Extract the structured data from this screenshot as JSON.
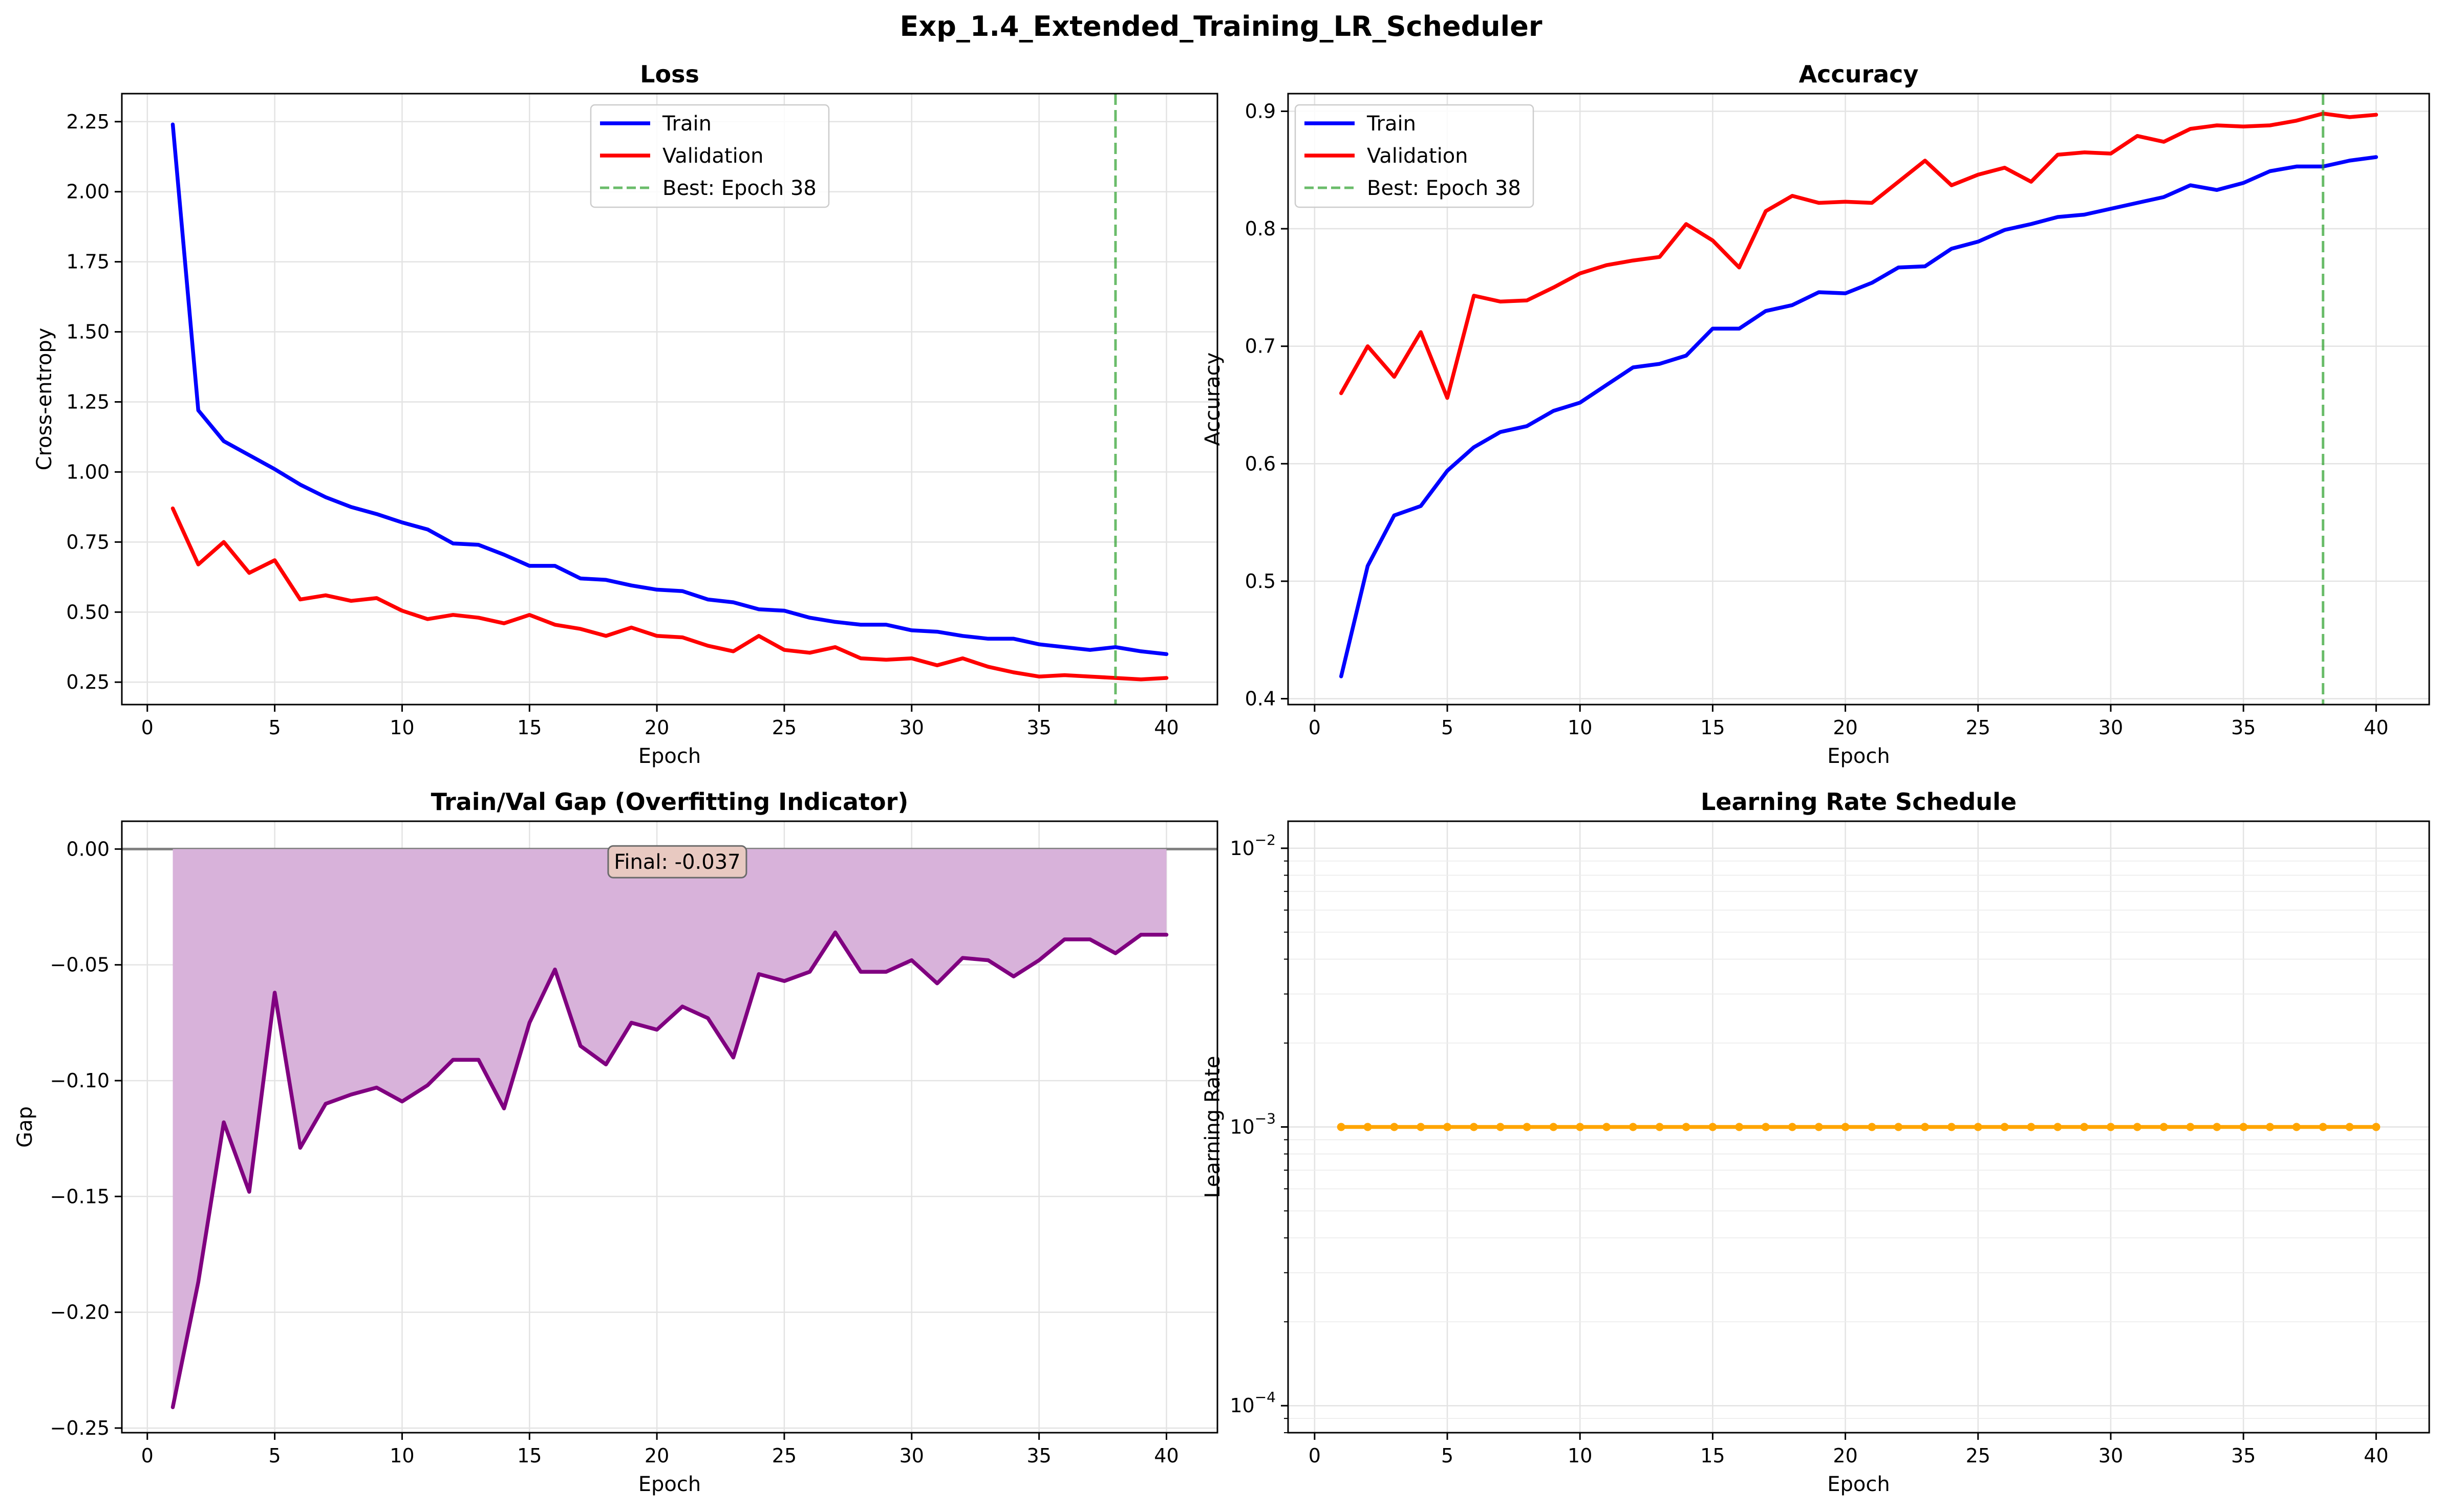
{
  "figure": {
    "title": "Exp_1.4_Extended_Training_LR_Scheduler"
  },
  "chart_data": [
    {
      "type": "line",
      "title": "Loss",
      "xlabel": "Epoch",
      "ylabel": "Cross-entropy",
      "xlim": [
        -1,
        42
      ],
      "ylim": [
        0.17,
        2.35
      ],
      "xticks": [
        0,
        5,
        10,
        15,
        20,
        25,
        30,
        35,
        40
      ],
      "yticks": [
        0.25,
        0.5,
        0.75,
        1.0,
        1.25,
        1.5,
        1.75,
        2.0,
        2.25
      ],
      "ytick_labels": [
        "0.25",
        "0.50",
        "0.75",
        "1.00",
        "1.25",
        "1.50",
        "1.75",
        "2.00",
        "2.25"
      ],
      "grid": true,
      "legend_position": "upper center",
      "x": [
        1,
        2,
        3,
        4,
        5,
        6,
        7,
        8,
        9,
        10,
        11,
        12,
        13,
        14,
        15,
        16,
        17,
        18,
        19,
        20,
        21,
        22,
        23,
        24,
        25,
        26,
        27,
        28,
        29,
        30,
        31,
        32,
        33,
        34,
        35,
        36,
        37,
        38,
        39,
        40
      ],
      "series": [
        {
          "name": "Train",
          "color": "#0000ff",
          "values": [
            2.24,
            1.22,
            1.11,
            1.06,
            1.01,
            0.955,
            0.91,
            0.875,
            0.85,
            0.82,
            0.795,
            0.745,
            0.74,
            0.705,
            0.665,
            0.665,
            0.62,
            0.615,
            0.595,
            0.58,
            0.575,
            0.545,
            0.535,
            0.51,
            0.505,
            0.48,
            0.465,
            0.455,
            0.455,
            0.435,
            0.43,
            0.415,
            0.405,
            0.405,
            0.385,
            0.375,
            0.365,
            0.375,
            0.36,
            0.35
          ]
        },
        {
          "name": "Validation",
          "color": "#ff0000",
          "values": [
            0.87,
            0.67,
            0.75,
            0.64,
            0.685,
            0.545,
            0.56,
            0.54,
            0.55,
            0.505,
            0.475,
            0.49,
            0.48,
            0.46,
            0.49,
            0.455,
            0.44,
            0.415,
            0.445,
            0.415,
            0.41,
            0.38,
            0.36,
            0.415,
            0.365,
            0.355,
            0.375,
            0.335,
            0.33,
            0.335,
            0.31,
            0.335,
            0.305,
            0.285,
            0.27,
            0.275,
            0.27,
            0.265,
            0.26,
            0.265
          ]
        }
      ],
      "vline": {
        "x": 38,
        "label": "Best: Epoch 38",
        "color": "#2ca02c"
      }
    },
    {
      "type": "line",
      "title": "Accuracy",
      "xlabel": "Epoch",
      "ylabel": "Accuracy",
      "xlim": [
        -1,
        42
      ],
      "ylim": [
        0.395,
        0.915
      ],
      "xticks": [
        0,
        5,
        10,
        15,
        20,
        25,
        30,
        35,
        40
      ],
      "yticks": [
        0.4,
        0.5,
        0.6,
        0.7,
        0.8,
        0.9
      ],
      "ytick_labels": [
        "0.4",
        "0.5",
        "0.6",
        "0.7",
        "0.8",
        "0.9"
      ],
      "grid": true,
      "legend_position": "upper left",
      "x": [
        1,
        2,
        3,
        4,
        5,
        6,
        7,
        8,
        9,
        10,
        11,
        12,
        13,
        14,
        15,
        16,
        17,
        18,
        19,
        20,
        21,
        22,
        23,
        24,
        25,
        26,
        27,
        28,
        29,
        30,
        31,
        32,
        33,
        34,
        35,
        36,
        37,
        38,
        39,
        40
      ],
      "series": [
        {
          "name": "Train",
          "color": "#0000ff",
          "values": [
            0.419,
            0.513,
            0.556,
            0.564,
            0.594,
            0.614,
            0.627,
            0.632,
            0.645,
            0.652,
            0.667,
            0.682,
            0.685,
            0.692,
            0.715,
            0.715,
            0.73,
            0.735,
            0.746,
            0.745,
            0.754,
            0.767,
            0.768,
            0.783,
            0.789,
            0.799,
            0.804,
            0.81,
            0.812,
            0.817,
            0.822,
            0.827,
            0.837,
            0.833,
            0.839,
            0.849,
            0.853,
            0.853,
            0.858,
            0.861
          ]
        },
        {
          "name": "Validation",
          "color": "#ff0000",
          "values": [
            0.66,
            0.7,
            0.674,
            0.712,
            0.656,
            0.743,
            0.738,
            0.739,
            0.75,
            0.762,
            0.769,
            0.773,
            0.776,
            0.804,
            0.79,
            0.767,
            0.815,
            0.828,
            0.822,
            0.823,
            0.822,
            0.84,
            0.858,
            0.837,
            0.846,
            0.852,
            0.84,
            0.863,
            0.865,
            0.864,
            0.879,
            0.874,
            0.885,
            0.888,
            0.887,
            0.888,
            0.892,
            0.898,
            0.895,
            0.897
          ]
        }
      ],
      "vline": {
        "x": 38,
        "label": "Best: Epoch 38",
        "color": "#2ca02c"
      }
    },
    {
      "type": "area",
      "title": "Train/Val Gap (Overfitting Indicator)",
      "xlabel": "Epoch",
      "ylabel": "Gap",
      "xlim": [
        -1,
        42
      ],
      "ylim": [
        -0.252,
        0.012
      ],
      "xticks": [
        0,
        5,
        10,
        15,
        20,
        25,
        30,
        35,
        40
      ],
      "yticks": [
        0.0,
        -0.05,
        -0.1,
        -0.15,
        -0.2,
        -0.25
      ],
      "ytick_labels": [
        "0.00",
        "−0.05",
        "−0.10",
        "−0.15",
        "−0.20",
        "−0.25"
      ],
      "grid": true,
      "x": [
        1,
        2,
        3,
        4,
        5,
        6,
        7,
        8,
        9,
        10,
        11,
        12,
        13,
        14,
        15,
        16,
        17,
        18,
        19,
        20,
        21,
        22,
        23,
        24,
        25,
        26,
        27,
        28,
        29,
        30,
        31,
        32,
        33,
        34,
        35,
        36,
        37,
        38,
        39,
        40
      ],
      "series": [
        {
          "name": "",
          "color": "#800080",
          "fill": "#d8b2da",
          "values": [
            -0.241,
            -0.187,
            -0.118,
            -0.148,
            -0.062,
            -0.129,
            -0.11,
            -0.106,
            -0.103,
            -0.109,
            -0.102,
            -0.091,
            -0.091,
            -0.112,
            -0.075,
            -0.052,
            -0.085,
            -0.093,
            -0.075,
            -0.078,
            -0.068,
            -0.073,
            -0.09,
            -0.054,
            -0.057,
            -0.053,
            -0.036,
            -0.053,
            -0.053,
            -0.048,
            -0.058,
            -0.047,
            -0.048,
            -0.055,
            -0.048,
            -0.039,
            -0.039,
            -0.045,
            -0.037,
            -0.037
          ]
        }
      ],
      "hline": {
        "y": 0,
        "color": "#808080"
      },
      "annotation": {
        "text": "Final: -0.037",
        "x": 20.8,
        "y": -0.0055,
        "box_color": "#e8c9c1"
      }
    },
    {
      "type": "line",
      "title": "Learning Rate Schedule",
      "xlabel": "Epoch",
      "ylabel": "Learning Rate",
      "yscale": "log",
      "xlim": [
        -1,
        42
      ],
      "ylim": [
        8e-05,
        0.0125
      ],
      "xticks": [
        0,
        5,
        10,
        15,
        20,
        25,
        30,
        35,
        40
      ],
      "yticks_major": [
        0.0001,
        0.001,
        0.01
      ],
      "ytick_labels": [
        [
          "10",
          "−4"
        ],
        [
          "10",
          "−3"
        ],
        [
          "10",
          "−2"
        ]
      ],
      "grid": true,
      "x": [
        1,
        2,
        3,
        4,
        5,
        6,
        7,
        8,
        9,
        10,
        11,
        12,
        13,
        14,
        15,
        16,
        17,
        18,
        19,
        20,
        21,
        22,
        23,
        24,
        25,
        26,
        27,
        28,
        29,
        30,
        31,
        32,
        33,
        34,
        35,
        36,
        37,
        38,
        39,
        40
      ],
      "series": [
        {
          "name": "",
          "color": "#ffa500",
          "marker": "o",
          "values": [
            0.001,
            0.001,
            0.001,
            0.001,
            0.001,
            0.001,
            0.001,
            0.001,
            0.001,
            0.001,
            0.001,
            0.001,
            0.001,
            0.001,
            0.001,
            0.001,
            0.001,
            0.001,
            0.001,
            0.001,
            0.001,
            0.001,
            0.001,
            0.001,
            0.001,
            0.001,
            0.001,
            0.001,
            0.001,
            0.001,
            0.001,
            0.001,
            0.001,
            0.001,
            0.001,
            0.001,
            0.001,
            0.001,
            0.001,
            0.001
          ]
        }
      ]
    }
  ]
}
